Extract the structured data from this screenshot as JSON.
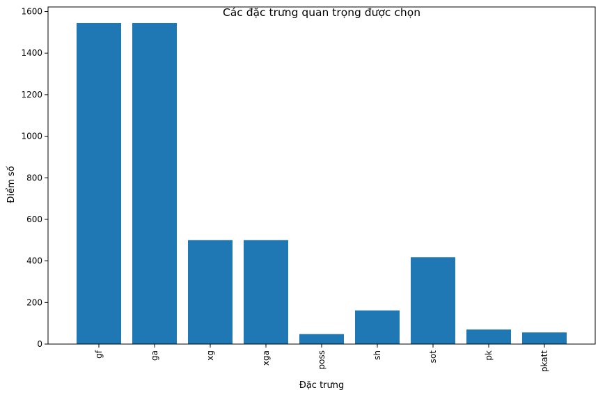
{
  "chart_data": {
    "type": "bar",
    "title": "Các đặc trưng quan trọng được chọn",
    "xlabel": "Đặc trưng",
    "ylabel": "Điểm số",
    "categories": [
      "gf",
      "ga",
      "xg",
      "xga",
      "poss",
      "sh",
      "sot",
      "pk",
      "pkatt"
    ],
    "values": [
      1545,
      1545,
      500,
      500,
      48,
      162,
      418,
      70,
      56
    ],
    "ylim": [
      0,
      1622
    ],
    "yticks": [
      0,
      200,
      400,
      600,
      800,
      1000,
      1200,
      1400,
      1600
    ],
    "bar_color": "#1f77b4",
    "grid": false,
    "x_tick_rotation": 90
  }
}
